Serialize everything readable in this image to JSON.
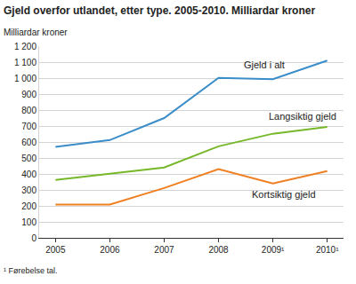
{
  "chart_data": {
    "type": "line",
    "title": "Gjeld overfor utlandet, etter type. 2005-2010. Milliardar kroner",
    "y_label": "Milliardar kroner",
    "note": "¹ Førebelse tal.",
    "categories": [
      "2005",
      "2006",
      "2007",
      "2008",
      "2009¹",
      "2010¹"
    ],
    "series": [
      {
        "name": "Gjeld i alt",
        "color": "#3a8dc8",
        "values": [
          570,
          612,
          750,
          1002,
          993,
          1110
        ]
      },
      {
        "name": "Langsiktig gjeld",
        "color": "#77b82a",
        "values": [
          362,
          402,
          440,
          573,
          652,
          695
        ]
      },
      {
        "name": "Kortsiktig gjeld",
        "color": "#f07f22",
        "values": [
          208,
          208,
          312,
          430,
          340,
          418
        ]
      }
    ],
    "ylim": [
      0,
      1200
    ],
    "yticks": [
      0,
      100,
      200,
      300,
      400,
      500,
      600,
      700,
      800,
      900,
      {
        "value": 1000,
        "label": "1 000"
      },
      {
        "value": 1100,
        "label": "1 100"
      },
      {
        "value": 1200,
        "label": "1 200"
      }
    ],
    "grid": true,
    "legend": "none"
  }
}
